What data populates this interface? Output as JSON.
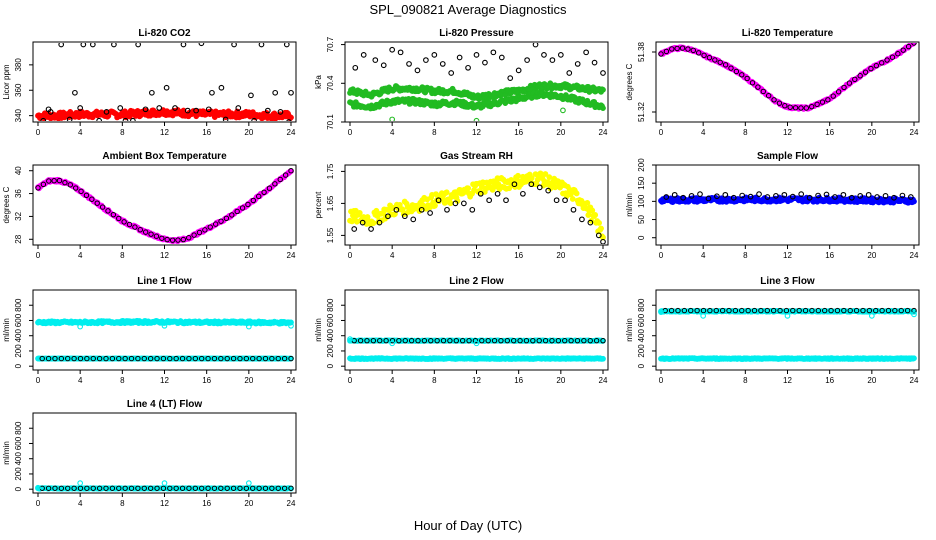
{
  "figure": {
    "title": "SPL_090821  Average Diagnostics",
    "xlabel": "Hour of Day (UTC)"
  },
  "colors": {
    "red": "#ff0000",
    "green": "#22bb22",
    "magenta": "#ff00ff",
    "yellow": "#ffff00",
    "blue": "#0000ff",
    "cyan": "#00eeee",
    "black": "#000000"
  },
  "chart_data": [
    {
      "type": "scatter",
      "title": "Li-820 CO2",
      "ylabel": "Licor ppm",
      "xlim": [
        0,
        24
      ],
      "ylim": [
        335,
        398
      ],
      "yticks": [
        340,
        360,
        380
      ],
      "xticks": [
        0,
        4,
        8,
        12,
        16,
        20,
        24
      ],
      "series": [
        {
          "style": "dense",
          "color": "#ff0000",
          "x": [
            0,
            2,
            4,
            6,
            8,
            10,
            12,
            14,
            16,
            18,
            20,
            22,
            24
          ],
          "y": [
            340,
            340,
            341,
            341,
            341,
            342,
            343,
            342,
            341,
            341,
            341,
            340,
            340
          ],
          "spread": 2.5
        },
        {
          "style": "open",
          "color": "#000000",
          "x": [
            0.5,
            1.2,
            2.2,
            3.5,
            4.3,
            5.2,
            7.2,
            8.3,
            9.5,
            10.8,
            12.2,
            13.8,
            15.5,
            16.5,
            17.4,
            18.6,
            20.2,
            21.2,
            22.5,
            23.6,
            24.0
          ],
          "y": [
            336,
            343,
            396,
            358,
            396,
            396,
            396,
            336,
            396,
            358,
            362,
            396,
            397,
            358,
            362,
            396,
            356,
            396,
            358,
            396,
            358
          ]
        },
        {
          "style": "open",
          "color": "#000000",
          "x": [
            1.0,
            3.0,
            4.0,
            5.8,
            6.5,
            7.8,
            9.0,
            10.2,
            11.5,
            13.0,
            14.2,
            15.0,
            16.2,
            17.8,
            19.0,
            20.5,
            21.8,
            23.0,
            23.8
          ],
          "y": [
            345,
            337,
            346,
            336,
            343,
            346,
            336,
            345,
            346,
            346,
            344,
            344,
            345,
            337,
            346,
            336,
            344,
            343,
            335
          ]
        }
      ]
    },
    {
      "type": "scatter",
      "title": "Li-820 Pressure",
      "ylabel": "kPa",
      "xlim": [
        0,
        24
      ],
      "ylim": [
        70.1,
        70.72
      ],
      "yticks": [
        70.1,
        70.4,
        70.7
      ],
      "xticks": [
        0,
        4,
        8,
        12,
        16,
        20,
        24
      ],
      "series": [
        {
          "style": "dense",
          "color": "#22bb22",
          "x": [
            0,
            2,
            4,
            6,
            8,
            10,
            12,
            14,
            16,
            18,
            20,
            22,
            24
          ],
          "y": [
            70.34,
            70.31,
            70.36,
            70.36,
            70.34,
            70.34,
            70.29,
            70.32,
            70.34,
            70.38,
            70.38,
            70.36,
            70.34
          ],
          "spread": 0.02
        },
        {
          "style": "dense",
          "color": "#22bb22",
          "x": [
            0,
            2,
            4,
            6,
            8,
            10,
            12,
            14,
            16,
            18,
            20,
            22,
            24
          ],
          "y": [
            70.24,
            70.22,
            70.26,
            70.26,
            70.24,
            70.25,
            70.22,
            70.25,
            70.28,
            70.32,
            70.3,
            70.26,
            70.22
          ],
          "spread": 0.02
        },
        {
          "style": "open",
          "color": "#22bb22",
          "x": [
            4.0,
            12.0,
            20.2
          ],
          "y": [
            70.12,
            70.11,
            70.19
          ]
        },
        {
          "style": "open",
          "color": "#000000",
          "x": [
            0.5,
            1.3,
            2.4,
            3.2,
            4.0,
            4.8,
            5.6,
            6.4,
            7.2,
            8.0,
            8.8,
            9.6,
            10.4,
            11.2,
            12.0,
            12.8,
            13.6,
            14.4,
            15.2,
            16.0,
            16.8,
            17.6,
            18.4,
            19.2,
            20.0,
            20.8,
            21.6,
            22.4,
            23.2,
            24.0
          ],
          "y": [
            70.52,
            70.62,
            70.58,
            70.54,
            70.66,
            70.64,
            70.55,
            70.5,
            70.58,
            70.62,
            70.55,
            70.48,
            70.6,
            70.52,
            70.62,
            70.56,
            70.64,
            70.6,
            70.44,
            70.5,
            70.58,
            70.7,
            70.62,
            70.58,
            70.62,
            70.48,
            70.55,
            70.64,
            70.56,
            70.48
          ]
        }
      ]
    },
    {
      "type": "scatter",
      "title": "Li-820 Temperature",
      "ylabel": "degrees C",
      "xlim": [
        0,
        24
      ],
      "ylim": [
        51.31,
        51.39
      ],
      "yticks": [
        51.32,
        51.38
      ],
      "xticks": [
        0,
        4,
        8,
        12,
        16,
        20,
        24
      ],
      "series": [
        {
          "style": "dense",
          "color": "#ff00ff",
          "x": [
            0,
            1,
            2,
            3,
            4,
            6,
            8,
            10,
            11,
            12,
            13,
            14,
            16,
            18,
            20,
            22,
            24
          ],
          "y": [
            51.378,
            51.383,
            51.384,
            51.382,
            51.377,
            51.368,
            51.355,
            51.338,
            51.33,
            51.325,
            51.324,
            51.324,
            51.333,
            51.35,
            51.364,
            51.375,
            51.389
          ],
          "spread": 0.001
        },
        {
          "style": "openline",
          "color": "#000000",
          "x": [
            0,
            1,
            2,
            3,
            4,
            6,
            8,
            10,
            11,
            12,
            13,
            14,
            16,
            18,
            20,
            22,
            24
          ],
          "y": [
            51.378,
            51.383,
            51.384,
            51.382,
            51.377,
            51.368,
            51.355,
            51.338,
            51.33,
            51.325,
            51.324,
            51.324,
            51.333,
            51.35,
            51.364,
            51.375,
            51.389
          ]
        }
      ]
    },
    {
      "type": "scatter",
      "title": "Ambient Box Temperature",
      "ylabel": "degrees C",
      "xlim": [
        0,
        24
      ],
      "ylim": [
        27,
        41
      ],
      "yticks": [
        28,
        32,
        36,
        40
      ],
      "xticks": [
        0,
        4,
        8,
        12,
        16,
        20,
        24
      ],
      "series": [
        {
          "style": "dense",
          "color": "#ff00ff",
          "x": [
            0,
            1,
            2,
            3,
            4,
            6,
            8,
            10,
            12,
            13,
            14,
            16,
            18,
            20,
            22,
            24
          ],
          "y": [
            37,
            38.2,
            38.3,
            37.6,
            36.5,
            33.8,
            31.2,
            29.4,
            28.0,
            27.8,
            28.0,
            29.8,
            31.8,
            34.2,
            37.0,
            40.0
          ],
          "spread": 0.2
        },
        {
          "style": "openline",
          "color": "#000000",
          "x": [
            0,
            1,
            2,
            3,
            4,
            6,
            8,
            10,
            12,
            13,
            14,
            16,
            18,
            20,
            22,
            24
          ],
          "y": [
            37,
            38.2,
            38.3,
            37.6,
            36.5,
            33.8,
            31.2,
            29.4,
            28.0,
            27.8,
            28.0,
            29.8,
            31.8,
            34.2,
            37.0,
            40.0
          ]
        }
      ]
    },
    {
      "type": "scatter",
      "title": "Gas Stream RH",
      "ylabel": "percent",
      "xlim": [
        0,
        24
      ],
      "ylim": [
        1.52,
        1.77
      ],
      "yticks": [
        1.55,
        1.65,
        1.75
      ],
      "xticks": [
        0,
        4,
        8,
        12,
        16,
        20,
        24
      ],
      "series": [
        {
          "style": "dense",
          "color": "#ffff00",
          "x": [
            0,
            2,
            4,
            6,
            8,
            10,
            12,
            14,
            16,
            18,
            20,
            22,
            23,
            24
          ],
          "y": [
            1.61,
            1.6,
            1.63,
            1.64,
            1.66,
            1.67,
            1.7,
            1.71,
            1.72,
            1.73,
            1.7,
            1.66,
            1.61,
            1.55
          ],
          "spread": 0.02
        },
        {
          "style": "open",
          "color": "#000000",
          "x": [
            0.4,
            1.2,
            2.0,
            2.8,
            3.6,
            4.4,
            5.2,
            6.0,
            6.8,
            7.6,
            8.4,
            9.2,
            10.0,
            10.8,
            11.6,
            12.4,
            13.2,
            14.0,
            14.8,
            15.6,
            16.4,
            17.2,
            18.0,
            18.8,
            19.6,
            20.4,
            21.2,
            22.0,
            22.8,
            23.6,
            24.0
          ],
          "y": [
            1.57,
            1.59,
            1.57,
            1.59,
            1.61,
            1.63,
            1.61,
            1.6,
            1.63,
            1.62,
            1.66,
            1.63,
            1.65,
            1.65,
            1.63,
            1.68,
            1.66,
            1.68,
            1.66,
            1.71,
            1.68,
            1.71,
            1.7,
            1.69,
            1.66,
            1.66,
            1.63,
            1.6,
            1.59,
            1.55,
            1.53
          ]
        }
      ]
    },
    {
      "type": "scatter",
      "title": "Sample Flow",
      "ylabel": "ml/min",
      "xlim": [
        0,
        24
      ],
      "ylim": [
        -20,
        200
      ],
      "yticks": [
        0,
        50,
        100,
        150,
        200
      ],
      "xticks": [
        0,
        4,
        8,
        12,
        16,
        20,
        24
      ],
      "series": [
        {
          "style": "dense",
          "color": "#0000ff",
          "x": [
            0,
            4,
            8,
            12,
            16,
            20,
            24
          ],
          "y": [
            104,
            104,
            105,
            105,
            105,
            103,
            102
          ],
          "spread": 6
        },
        {
          "style": "open",
          "color": "#000000",
          "x": [
            0.5,
            1.3,
            2.1,
            2.9,
            3.7,
            4.5,
            5.3,
            6.1,
            6.9,
            7.7,
            8.5,
            9.3,
            10.1,
            10.9,
            11.7,
            12.5,
            13.3,
            14.1,
            14.9,
            15.7,
            16.5,
            17.3,
            18.1,
            18.9,
            19.7,
            20.5,
            21.3,
            22.1,
            22.9,
            23.7
          ],
          "y": [
            112,
            118,
            110,
            115,
            120,
            108,
            114,
            118,
            110,
            116,
            113,
            120,
            112,
            115,
            118,
            113,
            120,
            110,
            116,
            119,
            112,
            118,
            110,
            115,
            118,
            112,
            115,
            110,
            116,
            112
          ]
        }
      ]
    },
    {
      "type": "scatter",
      "title": "Line 1 Flow",
      "ylabel": "ml/min",
      "xlim": [
        0,
        24
      ],
      "ylim": [
        -50,
        1000
      ],
      "yticks": [
        0,
        200,
        400,
        600,
        800
      ],
      "xticks": [
        0,
        4,
        8,
        12,
        16,
        20,
        24
      ],
      "series": [
        {
          "style": "dense",
          "color": "#00eeee",
          "x": [
            0,
            4,
            8,
            12,
            16,
            20,
            24
          ],
          "y": [
            575,
            575,
            580,
            580,
            575,
            575,
            570
          ],
          "spread": 15
        },
        {
          "style": "open",
          "color": "#00eeee",
          "x": [
            4,
            12,
            20,
            24
          ],
          "y": [
            520,
            530,
            520,
            530
          ]
        },
        {
          "style": "dense",
          "color": "#00eeee",
          "x": [
            0,
            24
          ],
          "y": [
            100,
            100
          ],
          "spread": 2
        },
        {
          "style": "openrow",
          "color": "#000000",
          "x": [
            0.4,
            24
          ],
          "y": [
            100,
            100
          ],
          "n": 40
        }
      ]
    },
    {
      "type": "scatter",
      "title": "Line 2 Flow",
      "ylabel": "ml/min",
      "xlim": [
        0,
        24
      ],
      "ylim": [
        -50,
        1000
      ],
      "yticks": [
        0,
        200,
        400,
        600,
        800
      ],
      "xticks": [
        0,
        4,
        8,
        12,
        16,
        20,
        24
      ],
      "series": [
        {
          "style": "dense",
          "color": "#00eeee",
          "x": [
            0,
            24
          ],
          "y": [
            100,
            100
          ],
          "spread": 6
        },
        {
          "style": "dense",
          "color": "#00eeee",
          "x": [
            0,
            24
          ],
          "y": [
            335,
            335
          ],
          "spread": 4
        },
        {
          "style": "openrow",
          "color": "#000000",
          "x": [
            0.4,
            24
          ],
          "y": [
            335,
            335
          ],
          "n": 40
        },
        {
          "style": "open",
          "color": "#00eeee",
          "x": [
            0,
            4,
            12
          ],
          "y": [
            355,
            300,
            300
          ]
        }
      ]
    },
    {
      "type": "scatter",
      "title": "Line 3 Flow",
      "ylabel": "ml/min",
      "xlim": [
        0,
        24
      ],
      "ylim": [
        -50,
        1000
      ],
      "yticks": [
        0,
        200,
        400,
        600,
        800
      ],
      "xticks": [
        0,
        4,
        8,
        12,
        16,
        20,
        24
      ],
      "series": [
        {
          "style": "dense",
          "color": "#00eeee",
          "x": [
            0,
            24
          ],
          "y": [
            100,
            100
          ],
          "spread": 6
        },
        {
          "style": "dense",
          "color": "#00eeee",
          "x": [
            0,
            24
          ],
          "y": [
            720,
            720
          ],
          "spread": 6
        },
        {
          "style": "openrow",
          "color": "#000000",
          "x": [
            0.4,
            24
          ],
          "y": [
            730,
            730
          ],
          "n": 40
        },
        {
          "style": "open",
          "color": "#00eeee",
          "x": [
            0,
            4,
            12,
            20,
            24
          ],
          "y": [
            710,
            660,
            660,
            660,
            680
          ]
        }
      ]
    },
    {
      "type": "scatter",
      "title": "Line 4 (LT) Flow",
      "ylabel": "ml/min",
      "xlim": [
        0,
        24
      ],
      "ylim": [
        -50,
        1000
      ],
      "yticks": [
        0,
        200,
        400,
        600,
        800
      ],
      "xticks": [
        0,
        4,
        8,
        12,
        16,
        20,
        24
      ],
      "series": [
        {
          "style": "dense",
          "color": "#00eeee",
          "x": [
            0,
            24
          ],
          "y": [
            10,
            10
          ],
          "spread": 4
        },
        {
          "style": "openrow",
          "color": "#000000",
          "x": [
            0.4,
            24
          ],
          "y": [
            12,
            12
          ],
          "n": 40
        },
        {
          "style": "open",
          "color": "#00eeee",
          "x": [
            0,
            4,
            12,
            20
          ],
          "y": [
            20,
            80,
            80,
            80
          ]
        }
      ]
    }
  ]
}
